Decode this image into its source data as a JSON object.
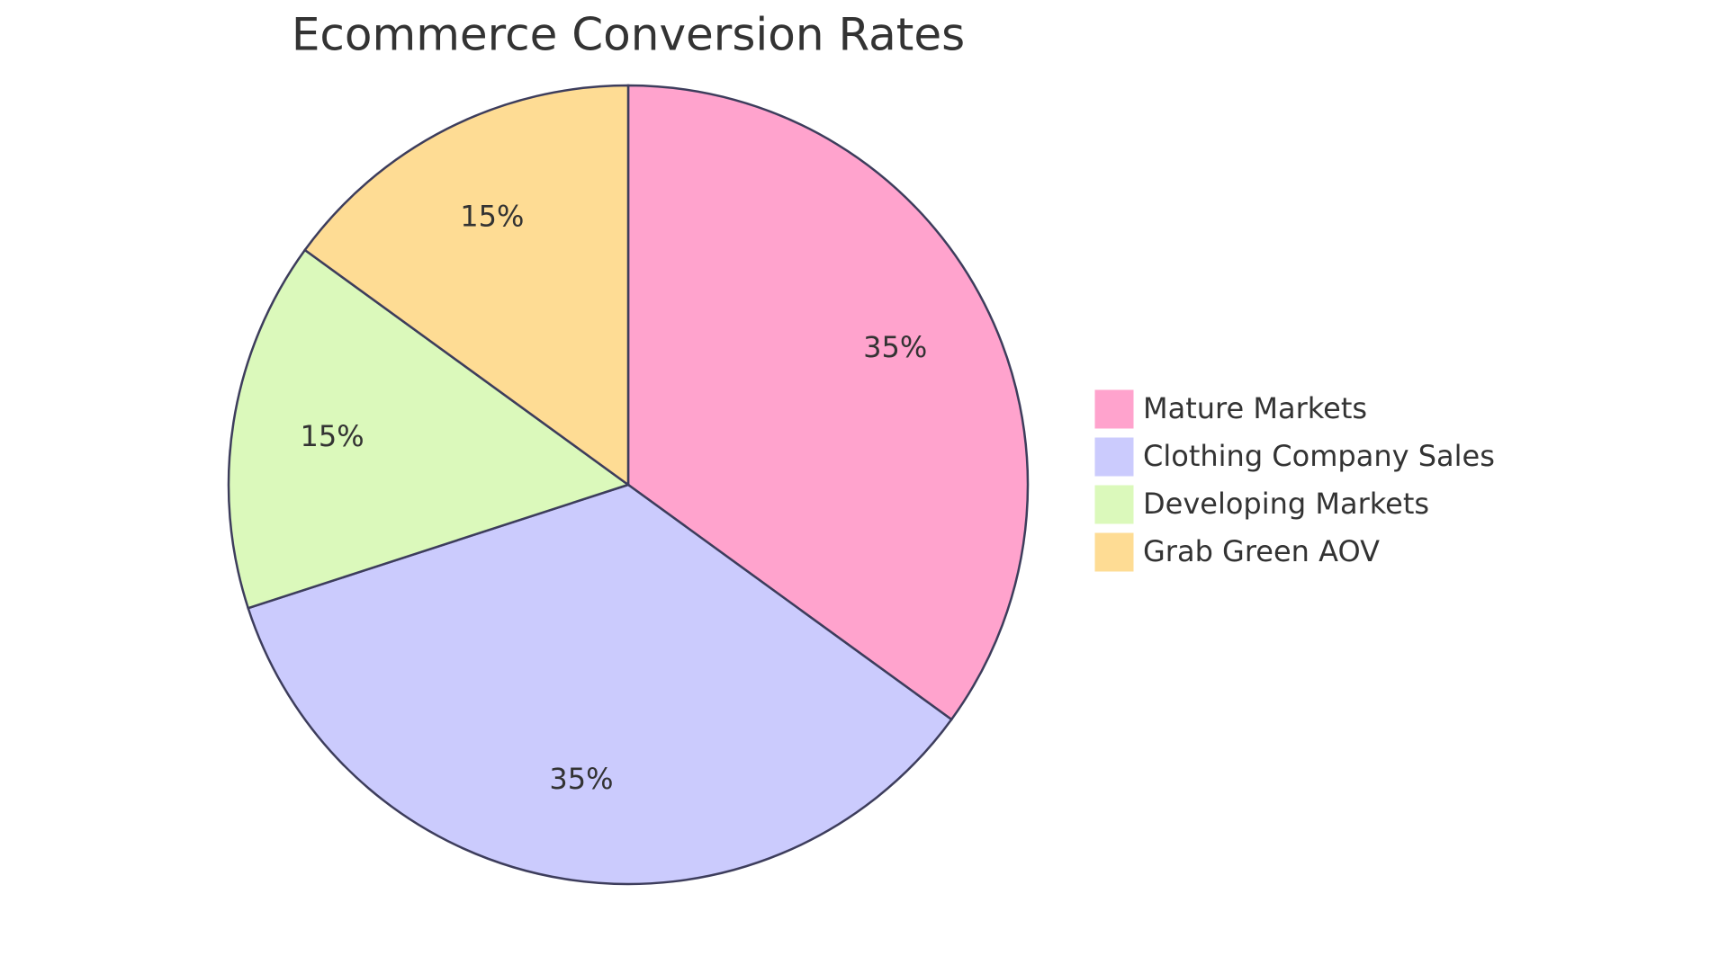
{
  "chart_data": {
    "type": "pie",
    "title": "Ecommerce Conversion Rates",
    "categories": [
      "Mature Markets",
      "Clothing Company Sales",
      "Developing Markets",
      "Grab Green AOV"
    ],
    "values": [
      35,
      35,
      15,
      15
    ],
    "value_labels": [
      "35%",
      "35%",
      "15%",
      "15%"
    ],
    "colors": [
      "#ffa3cd",
      "#cbcbfd",
      "#dbf9bb",
      "#fedc94"
    ],
    "legend": "right"
  }
}
